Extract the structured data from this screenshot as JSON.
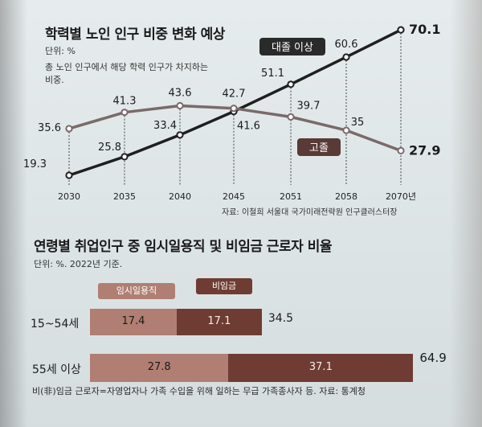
{
  "section1": {
    "title": "학력별 노인 인구 비중 변화 예상",
    "unit": "단위: %",
    "description": "총 노인 인구에서 해당 학력 인구가 차지하는 비중.",
    "source": "자료: 이철희 서울대 국가미래전략원 인구클러스터장"
  },
  "section2": {
    "title": "연령별 취업인구 중 임시일용직 및 비임금 근로자 비율",
    "unit": "단위: %. 2022년 기준.",
    "footnote": "비(非)임금 근로자=자영업자나 가족 수입을 위해 일하는 무급 가족종사자 등. 자료: 통계청"
  },
  "colors": {
    "college_line": "#1f1f1f",
    "highschool_line": "#7a6a6a",
    "temp_bar": "#b07e72",
    "nonwage_bar": "#6e3c32",
    "label_bg": "#5a3a36"
  },
  "chart_data": [
    {
      "type": "line",
      "title": "학력별 노인 인구 비중 변화 예상",
      "categories": [
        "2030",
        "2035",
        "2040",
        "2045",
        "2051",
        "2058",
        "2070년"
      ],
      "series": [
        {
          "name": "대졸 이상",
          "values": [
            19.3,
            25.8,
            33.4,
            41.6,
            51.1,
            60.6,
            70.1
          ]
        },
        {
          "name": "고졸",
          "values": [
            35.6,
            41.3,
            43.6,
            42.7,
            39.7,
            35,
            27.9
          ]
        }
      ],
      "ylabel": "%",
      "ylim": [
        15,
        75
      ]
    },
    {
      "type": "bar",
      "stacked": true,
      "orientation": "horizontal",
      "title": "연령별 취업인구 중 임시일용직 및 비임금 근로자 비율",
      "categories": [
        "15~54세",
        "55세 이상"
      ],
      "series": [
        {
          "name": "임시일용직",
          "values": [
            17.4,
            27.8
          ]
        },
        {
          "name": "비임금",
          "values": [
            17.1,
            37.1
          ]
        }
      ],
      "totals": [
        "34.5",
        "64.9"
      ]
    }
  ]
}
